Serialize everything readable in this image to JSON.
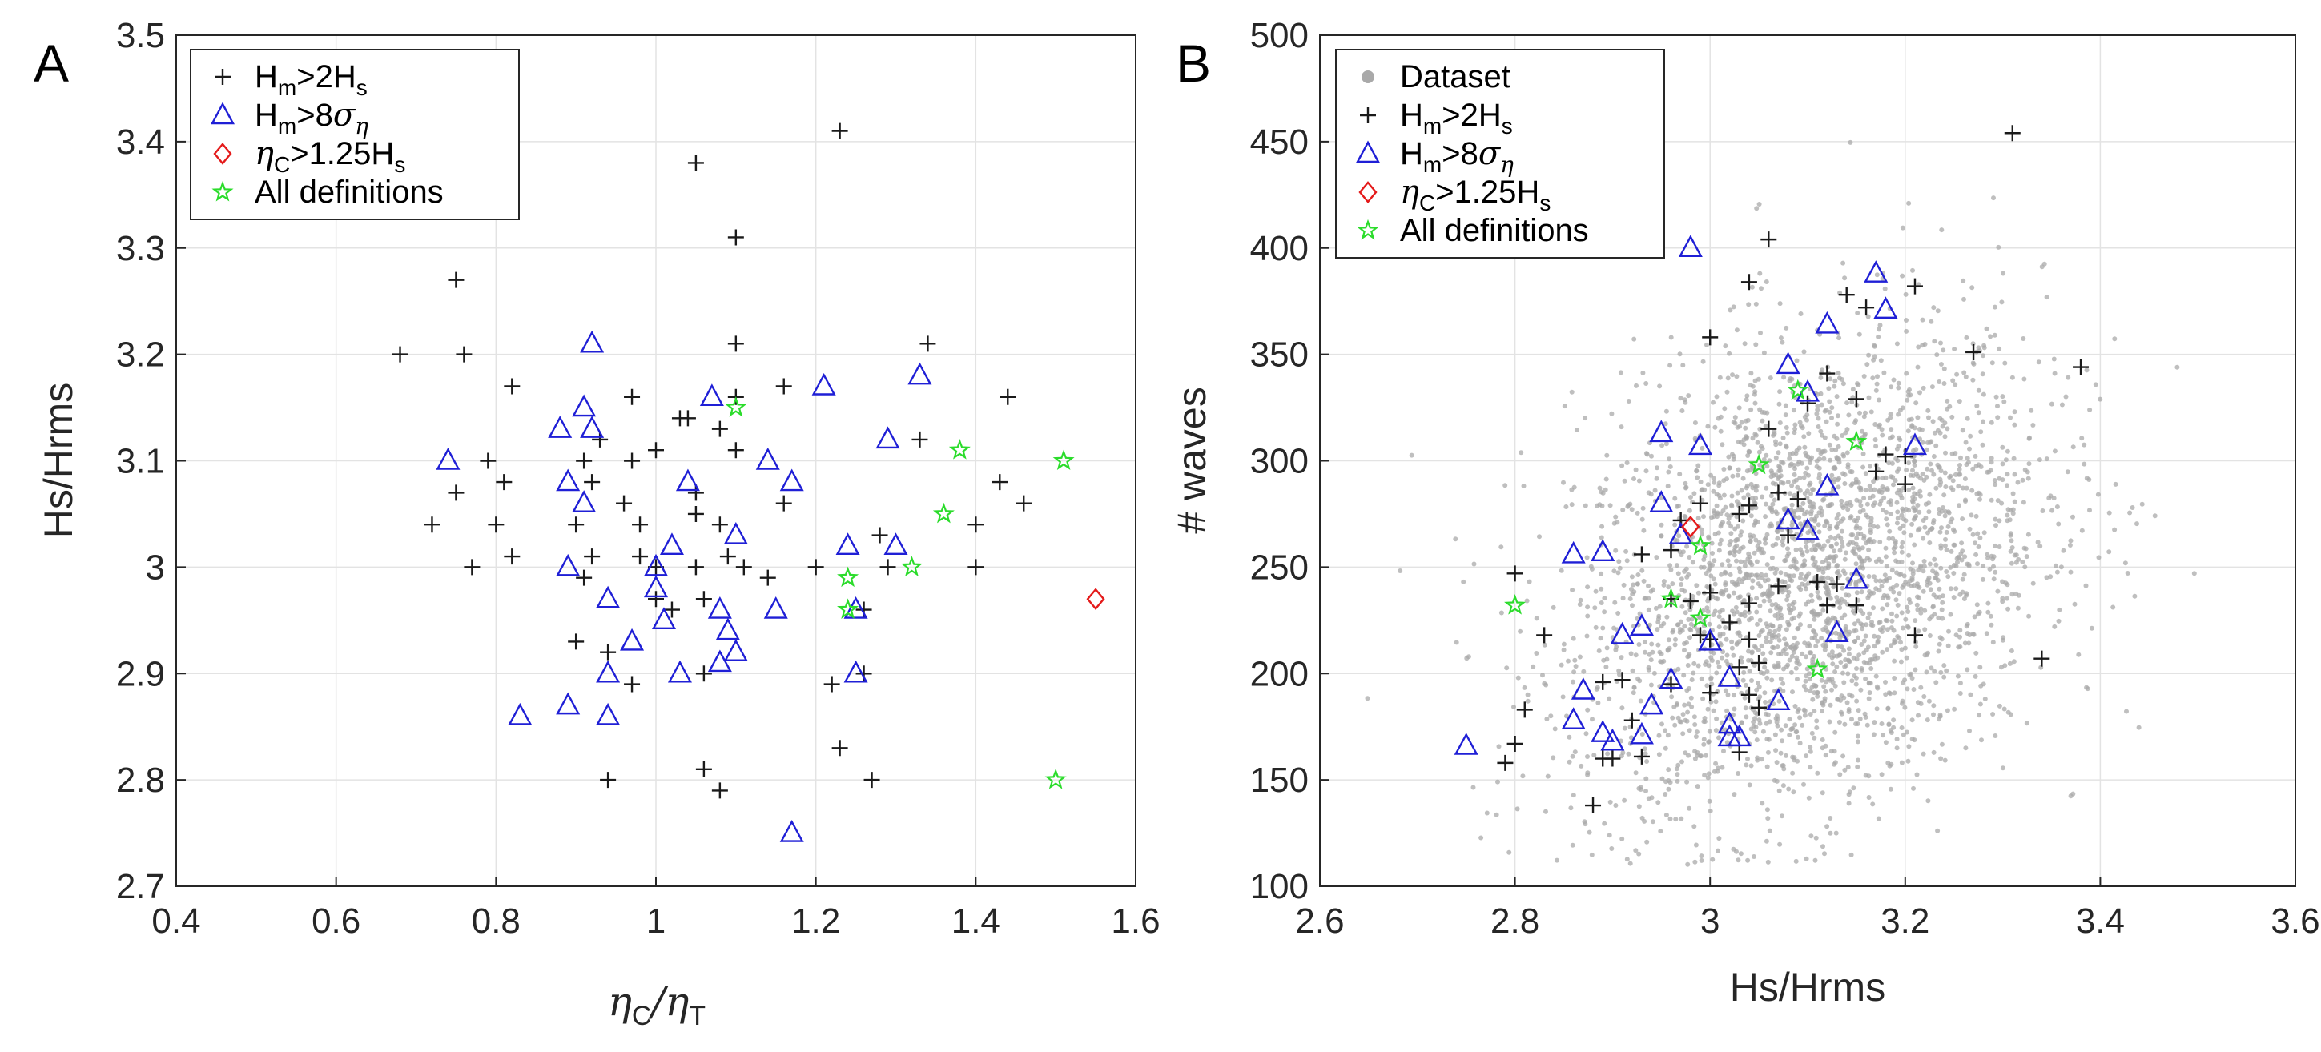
{
  "colors": {
    "plus": "#1a1a1a",
    "triangle": "#1f1fd6",
    "diamond": "#e41a1a",
    "star": "#2bdc2b",
    "dataset": "#a9a9a9",
    "grid": "#e3e3e3",
    "axis": "#262626"
  },
  "chart_data": [
    {
      "panel": "A",
      "type": "scatter",
      "xlabel_main": "η",
      "xlabel_sub1": "C",
      "xlabel_sep": "/η",
      "xlabel_sub2": "T",
      "ylabel": "Hs/Hrms",
      "xlim": [
        0.4,
        1.6
      ],
      "ylim": [
        2.7,
        3.5
      ],
      "xticks": [
        "0.4",
        "0.6",
        "0.8",
        "1",
        "1.2",
        "1.4",
        "1.6"
      ],
      "yticks": [
        "2.7",
        "2.8",
        "2.9",
        "3",
        "3.1",
        "3.2",
        "3.3",
        "3.4",
        "3.5"
      ],
      "legend_position": "top-left",
      "legend": [
        {
          "key": "plus",
          "main": "H",
          "sub": "m",
          "rest": ">2H",
          "sub2": "s"
        },
        {
          "key": "triangle",
          "main": "H",
          "sub": "m",
          "rest": ">8σ",
          "sub2": "η"
        },
        {
          "key": "diamond",
          "main": "η",
          "sub": "C",
          "rest": ">1.25H",
          "sub2": "s"
        },
        {
          "key": "star",
          "main": "All definitions",
          "sub": "",
          "rest": "",
          "sub2": ""
        }
      ],
      "series": {
        "plus": [
          [
            1.23,
            3.41
          ],
          [
            1.05,
            3.38
          ],
          [
            1.1,
            3.31
          ],
          [
            0.75,
            3.27
          ],
          [
            0.68,
            3.2
          ],
          [
            0.76,
            3.2
          ],
          [
            1.1,
            3.21
          ],
          [
            1.34,
            3.21
          ],
          [
            0.82,
            3.17
          ],
          [
            1.16,
            3.17
          ],
          [
            0.97,
            3.16
          ],
          [
            1.1,
            3.16
          ],
          [
            1.44,
            3.16
          ],
          [
            1.08,
            3.13
          ],
          [
            1.04,
            3.14
          ],
          [
            1.03,
            3.14
          ],
          [
            0.93,
            3.12
          ],
          [
            1.33,
            3.12
          ],
          [
            1.1,
            3.11
          ],
          [
            0.79,
            3.1
          ],
          [
            1.0,
            3.11
          ],
          [
            0.97,
            3.1
          ],
          [
            0.91,
            3.1
          ],
          [
            1.43,
            3.08
          ],
          [
            0.81,
            3.08
          ],
          [
            0.92,
            3.08
          ],
          [
            1.05,
            3.07
          ],
          [
            0.75,
            3.07
          ],
          [
            1.16,
            3.06
          ],
          [
            1.46,
            3.06
          ],
          [
            1.05,
            3.05
          ],
          [
            0.96,
            3.06
          ],
          [
            0.9,
            3.04
          ],
          [
            0.8,
            3.04
          ],
          [
            0.98,
            3.04
          ],
          [
            1.08,
            3.04
          ],
          [
            1.4,
            3.04
          ],
          [
            0.72,
            3.04
          ],
          [
            1.28,
            3.03
          ],
          [
            0.92,
            3.01
          ],
          [
            0.82,
            3.01
          ],
          [
            1.09,
            3.01
          ],
          [
            1.05,
            3.0
          ],
          [
            1.11,
            3.0
          ],
          [
            1.0,
            3.0
          ],
          [
            0.98,
            3.01
          ],
          [
            1.2,
            3.0
          ],
          [
            0.77,
            3.0
          ],
          [
            1.29,
            3.0
          ],
          [
            1.4,
            3.0
          ],
          [
            0.91,
            2.99
          ],
          [
            1.14,
            2.99
          ],
          [
            1.0,
            2.97
          ],
          [
            1.06,
            2.97
          ],
          [
            1.26,
            2.96
          ],
          [
            1.02,
            2.96
          ],
          [
            0.9,
            2.93
          ],
          [
            0.94,
            2.92
          ],
          [
            1.22,
            2.89
          ],
          [
            0.97,
            2.89
          ],
          [
            1.06,
            2.9
          ],
          [
            1.26,
            2.9
          ],
          [
            1.23,
            2.83
          ],
          [
            0.94,
            2.8
          ],
          [
            1.06,
            2.81
          ],
          [
            1.27,
            2.8
          ],
          [
            1.08,
            2.79
          ]
        ],
        "triangle": [
          [
            0.92,
            3.21
          ],
          [
            0.74,
            3.1
          ],
          [
            0.91,
            3.15
          ],
          [
            0.92,
            3.13
          ],
          [
            0.88,
            3.13
          ],
          [
            1.07,
            3.16
          ],
          [
            1.21,
            3.17
          ],
          [
            1.33,
            3.18
          ],
          [
            1.29,
            3.12
          ],
          [
            1.14,
            3.1
          ],
          [
            0.89,
            3.08
          ],
          [
            1.04,
            3.08
          ],
          [
            1.17,
            3.08
          ],
          [
            0.91,
            3.06
          ],
          [
            1.1,
            3.03
          ],
          [
            1.02,
            3.02
          ],
          [
            1.24,
            3.02
          ],
          [
            1.3,
            3.02
          ],
          [
            1.0,
            3.0
          ],
          [
            0.89,
            3.0
          ],
          [
            1.0,
            2.98
          ],
          [
            0.94,
            2.97
          ],
          [
            1.15,
            2.96
          ],
          [
            1.25,
            2.96
          ],
          [
            1.01,
            2.95
          ],
          [
            1.08,
            2.96
          ],
          [
            1.09,
            2.94
          ],
          [
            1.1,
            2.92
          ],
          [
            0.97,
            2.93
          ],
          [
            1.08,
            2.91
          ],
          [
            1.25,
            2.9
          ],
          [
            0.94,
            2.9
          ],
          [
            1.03,
            2.9
          ],
          [
            0.89,
            2.87
          ],
          [
            0.94,
            2.86
          ],
          [
            0.83,
            2.86
          ],
          [
            1.17,
            2.75
          ]
        ],
        "diamond": [
          [
            1.55,
            2.97
          ]
        ],
        "star": [
          [
            1.1,
            3.15
          ],
          [
            1.38,
            3.11
          ],
          [
            1.51,
            3.1
          ],
          [
            1.36,
            3.05
          ],
          [
            1.32,
            3.0
          ],
          [
            1.24,
            2.99
          ],
          [
            1.24,
            2.96
          ],
          [
            1.5,
            2.8
          ]
        ]
      }
    },
    {
      "panel": "B",
      "type": "scatter",
      "xlabel": "Hs/Hrms",
      "ylabel": "# waves",
      "xlim": [
        2.6,
        3.6
      ],
      "ylim": [
        100,
        500
      ],
      "xticks": [
        "2.6",
        "2.8",
        "3",
        "3.2",
        "3.4",
        "3.6"
      ],
      "yticks": [
        "100",
        "150",
        "200",
        "250",
        "300",
        "350",
        "400",
        "450",
        "500"
      ],
      "legend_position": "top-left",
      "legend": [
        {
          "key": "dataset",
          "main": "Dataset",
          "sub": "",
          "rest": "",
          "sub2": ""
        },
        {
          "key": "plus",
          "main": "H",
          "sub": "m",
          "rest": ">2H",
          "sub2": "s"
        },
        {
          "key": "triangle",
          "main": "H",
          "sub": "m",
          "rest": ">8σ",
          "sub2": "η"
        },
        {
          "key": "diamond",
          "main": "η",
          "sub": "C",
          "rest": ">1.25H",
          "sub2": "s"
        },
        {
          "key": "star",
          "main": "All definitions",
          "sub": "",
          "rest": "",
          "sub2": ""
        }
      ],
      "dataset": {
        "count": 3000,
        "x_mean": 3.1,
        "x_sd": 0.12,
        "y_mean": 245,
        "y_sd": 58,
        "correlation": 0.3
      },
      "series": {
        "plus": [
          [
            3.31,
            454
          ],
          [
            3.06,
            404
          ],
          [
            3.04,
            384
          ],
          [
            3.21,
            382
          ],
          [
            3.14,
            378
          ],
          [
            3.16,
            372
          ],
          [
            3.0,
            358
          ],
          [
            3.27,
            351
          ],
          [
            3.38,
            344
          ],
          [
            3.12,
            341
          ],
          [
            3.15,
            329
          ],
          [
            3.1,
            327
          ],
          [
            3.06,
            315
          ],
          [
            3.18,
            303
          ],
          [
            3.2,
            302
          ],
          [
            3.17,
            295
          ],
          [
            3.2,
            289
          ],
          [
            3.07,
            285
          ],
          [
            3.09,
            282
          ],
          [
            3.04,
            279
          ],
          [
            3.03,
            275
          ],
          [
            2.99,
            280
          ],
          [
            2.97,
            272
          ],
          [
            2.96,
            258
          ],
          [
            2.93,
            256
          ],
          [
            3.08,
            265
          ],
          [
            3.11,
            243
          ],
          [
            3.13,
            242
          ],
          [
            3.07,
            241
          ],
          [
            3.12,
            232
          ],
          [
            3.15,
            232
          ],
          [
            3.0,
            238
          ],
          [
            3.04,
            233
          ],
          [
            2.96,
            235
          ],
          [
            3.02,
            224
          ],
          [
            3.0,
            216
          ],
          [
            3.04,
            216
          ],
          [
            2.98,
            234
          ],
          [
            2.99,
            218
          ],
          [
            3.21,
            218
          ],
          [
            2.8,
            247
          ],
          [
            2.83,
            218
          ],
          [
            3.05,
            205
          ],
          [
            3.03,
            203
          ],
          [
            2.89,
            196
          ],
          [
            2.91,
            197
          ],
          [
            2.96,
            195
          ],
          [
            3.0,
            191
          ],
          [
            3.04,
            190
          ],
          [
            3.34,
            207
          ],
          [
            2.81,
            183
          ],
          [
            2.92,
            178
          ],
          [
            3.05,
            184
          ],
          [
            2.8,
            167
          ],
          [
            2.89,
            160
          ],
          [
            2.9,
            160
          ],
          [
            2.93,
            161
          ],
          [
            3.03,
            163
          ],
          [
            2.79,
            158
          ],
          [
            2.88,
            138
          ]
        ],
        "triangle": [
          [
            2.98,
            400
          ],
          [
            3.17,
            388
          ],
          [
            3.18,
            371
          ],
          [
            3.12,
            364
          ],
          [
            3.08,
            345
          ],
          [
            3.1,
            332
          ],
          [
            2.95,
            313
          ],
          [
            2.99,
            307
          ],
          [
            3.21,
            307
          ],
          [
            3.12,
            288
          ],
          [
            2.95,
            280
          ],
          [
            3.08,
            272
          ],
          [
            3.1,
            267
          ],
          [
            2.97,
            265
          ],
          [
            2.86,
            256
          ],
          [
            2.89,
            257
          ],
          [
            3.15,
            244
          ],
          [
            2.93,
            222
          ],
          [
            2.91,
            218
          ],
          [
            3.0,
            215
          ],
          [
            3.02,
            198
          ],
          [
            2.96,
            197
          ],
          [
            3.13,
            219
          ],
          [
            2.94,
            185
          ],
          [
            2.87,
            192
          ],
          [
            3.07,
            187
          ],
          [
            2.86,
            178
          ],
          [
            2.89,
            172
          ],
          [
            2.93,
            171
          ],
          [
            2.9,
            168
          ],
          [
            3.02,
            176
          ],
          [
            3.02,
            170
          ],
          [
            3.03,
            170
          ],
          [
            2.75,
            166
          ]
        ],
        "diamond": [
          [
            2.98,
            269
          ]
        ],
        "star": [
          [
            3.09,
            333
          ],
          [
            3.15,
            309
          ],
          [
            3.05,
            298
          ],
          [
            2.99,
            260
          ],
          [
            2.96,
            235
          ],
          [
            2.99,
            226
          ],
          [
            2.8,
            232
          ],
          [
            3.11,
            202
          ]
        ]
      }
    }
  ],
  "panels": {
    "a": {
      "letter": "A"
    },
    "b": {
      "letter": "B"
    }
  }
}
